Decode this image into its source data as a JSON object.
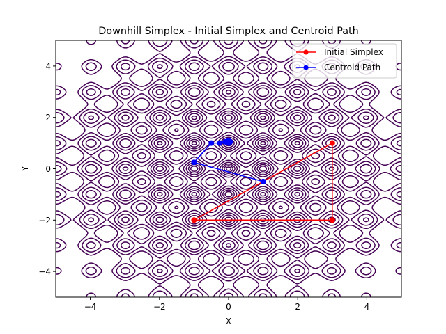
{
  "chart_data": {
    "type": "line",
    "title": "Downhill Simplex - Initial Simplex and Centroid Path",
    "xlabel": "X",
    "ylabel": "Y",
    "xlim": [
      -5,
      5
    ],
    "ylim": [
      -5,
      5
    ],
    "xticks": [
      -4,
      -2,
      0,
      2,
      4
    ],
    "yticks": [
      -4,
      -2,
      0,
      2,
      4
    ],
    "x_tick_labels": [
      "−4",
      "−2",
      "0",
      "2",
      "4"
    ],
    "y_tick_labels": [
      "−4",
      "−2",
      "0",
      "2",
      "4"
    ],
    "grid": false,
    "legend_position": "top-right",
    "contour": {
      "function": "x^2 + y^2 - 10*cos(2*pi*x) - 10*cos(2*pi*y) + 20",
      "color": "#440154"
    },
    "series": [
      {
        "name": "Initial Simplex",
        "color": "#ff0000",
        "marker": "circle",
        "points": [
          [
            3,
            1
          ],
          [
            3,
            -2
          ],
          [
            -1,
            -2
          ],
          [
            3,
            1
          ]
        ]
      },
      {
        "name": "Centroid Path",
        "color": "#0000ff",
        "marker": "circle",
        "points": [
          [
            1.0,
            -0.5
          ],
          [
            -1.0,
            0.25
          ],
          [
            -0.5,
            1.0
          ],
          [
            -0.25,
            1.0
          ],
          [
            -0.1,
            1.05
          ],
          [
            0.0,
            1.1
          ],
          [
            0.05,
            1.05
          ],
          [
            0.02,
            1.0
          ],
          [
            0.0,
            1.0
          ]
        ]
      }
    ]
  }
}
